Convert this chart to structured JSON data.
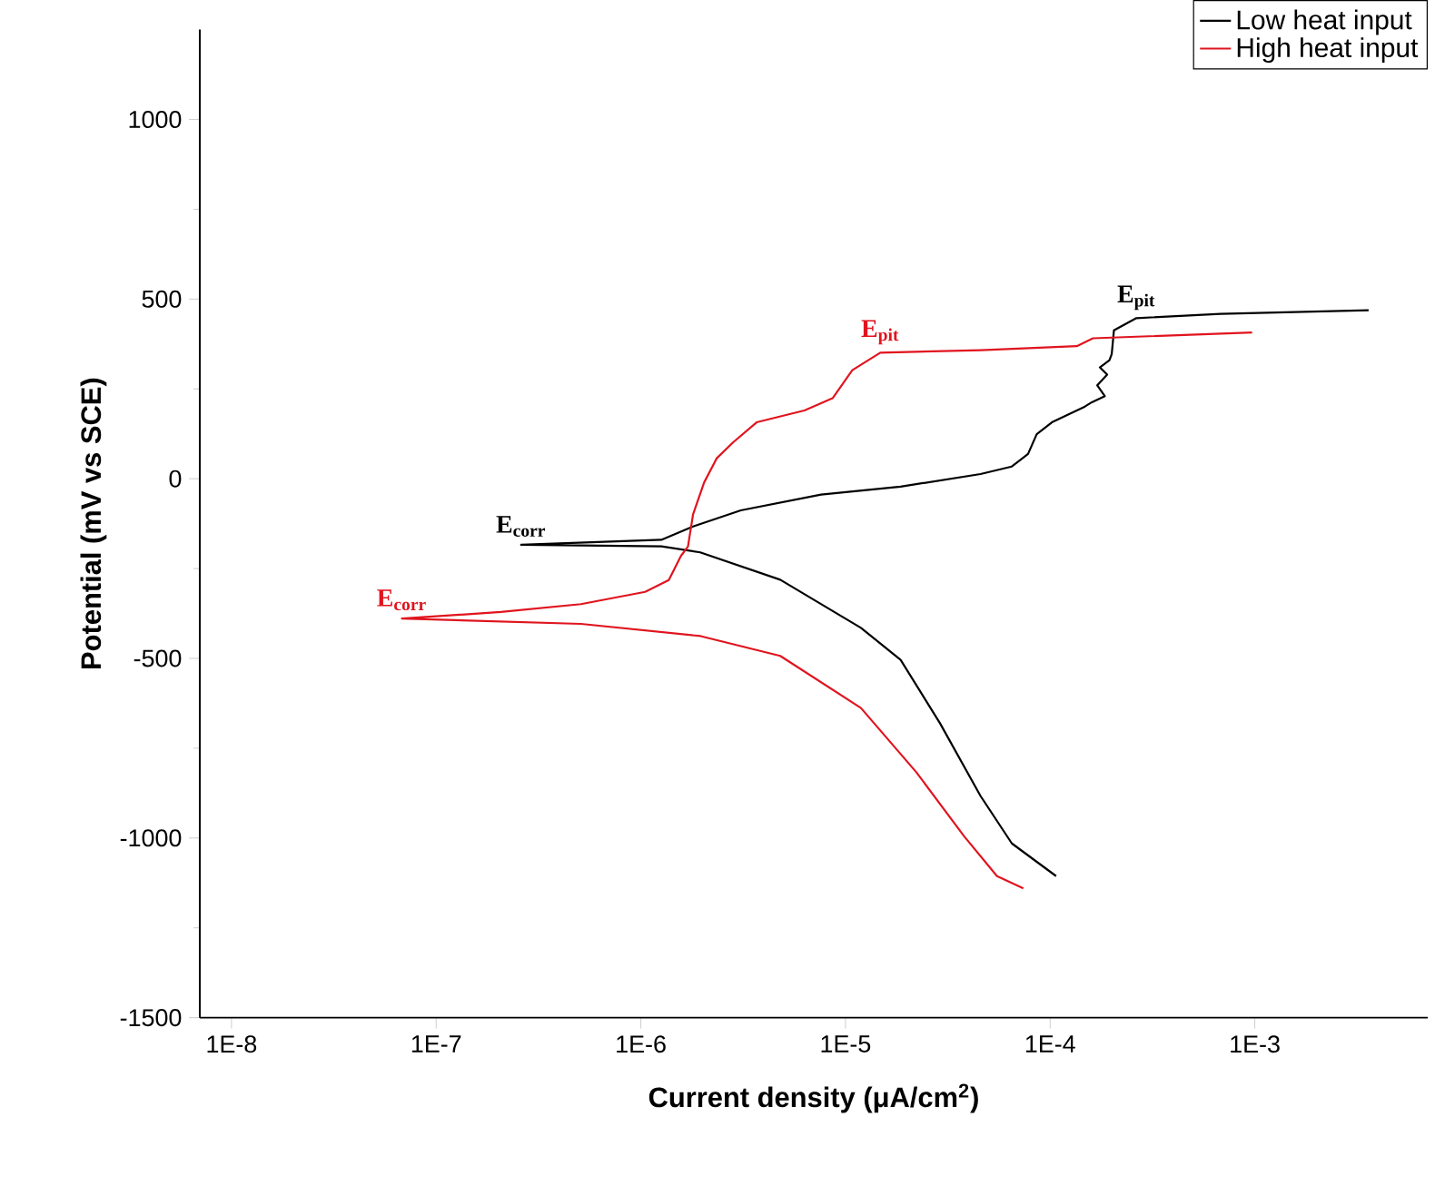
{
  "chart_data": {
    "type": "line",
    "xlabel": "Current density (μA/cm$^{2}$)",
    "ylabel": "Potential (mV vs SCE)",
    "log": "x",
    "xlim": [
      7e-09,
      0.007
    ],
    "ylim": [
      -1500,
      1250
    ],
    "xticks": [
      {
        "value": 1e-08,
        "label": "1E-8"
      },
      {
        "value": 1e-07,
        "label": "1E-7"
      },
      {
        "value": 1e-06,
        "label": "1E-6"
      },
      {
        "value": 1e-05,
        "label": "1E-5"
      },
      {
        "value": 0.0001,
        "label": "1E-4"
      },
      {
        "value": 0.001,
        "label": "1E-3"
      }
    ],
    "yticks": [
      -1500,
      -1000,
      -500,
      0,
      500,
      1000
    ],
    "grid": false,
    "legend": "top right",
    "series": [
      {
        "name": "Low heat input",
        "color": "#000000",
        "x": [
          0.000107,
          6.5e-05,
          4.57e-05,
          2.9e-05,
          1.86e-05,
          1.19e-05,
          4.8e-06,
          1.95e-06,
          1.26e-06,
          2.6e-07,
          1.26e-06,
          1.8e-06,
          3.08e-06,
          7.6e-06,
          1.86e-05,
          4.57e-05,
          6.5e-05,
          7.8e-05,
          8.6e-05,
          0.000102,
          0.000148,
          0.00016,
          0.000185,
          0.00017,
          0.00019,
          0.000175,
          0.000195,
          0.0002,
          0.000205,
          0.000264,
          0.00068,
          0.0036
        ],
        "values": [
          -1106,
          -1015,
          -883,
          -681,
          -504,
          -415,
          -281,
          -205,
          -188,
          -184,
          -170,
          -133,
          -88,
          -44,
          -22,
          13,
          34,
          69,
          124,
          157,
          201,
          213,
          230,
          260,
          290,
          310,
          330,
          347,
          413,
          447,
          459,
          469
        ]
      },
      {
        "name": "High heat input",
        "color": "#e0141e",
        "x": [
          7.4e-05,
          5.5e-05,
          3.8e-05,
          2.22e-05,
          1.19e-05,
          4.8e-06,
          1.96e-06,
          5.1e-07,
          6.8e-08,
          2.07e-07,
          5.1e-07,
          1.05e-06,
          1.37e-06,
          1.57e-06,
          1.7e-06,
          1.8e-06,
          2.04e-06,
          2.35e-06,
          2.82e-06,
          3.68e-06,
          6.3e-06,
          8.65e-06,
          1.08e-05,
          1.48e-05,
          4.57e-05,
          0.000135,
          0.000162,
          0.00097
        ],
        "values": [
          -1140,
          -1106,
          -995,
          -817,
          -638,
          -493,
          -438,
          -404,
          -389,
          -371,
          -349,
          -315,
          -282,
          -215,
          -189,
          -99,
          -10,
          57,
          101,
          157,
          190,
          224,
          302,
          351,
          358,
          369,
          391,
          407
        ]
      }
    ],
    "annotations": [
      {
        "text": "E$_{corr}$",
        "x": 2.6e-07,
        "y": -184
      },
      {
        "text": "E$_{pit}$",
        "x": 0.000264,
        "y": 447
      },
      {
        "text": "E$_{corr}$",
        "x": 6.8e-08,
        "y": -389
      },
      {
        "text": "E$_{pit}$",
        "x": 1.48e-05,
        "y": 351
      }
    ]
  }
}
